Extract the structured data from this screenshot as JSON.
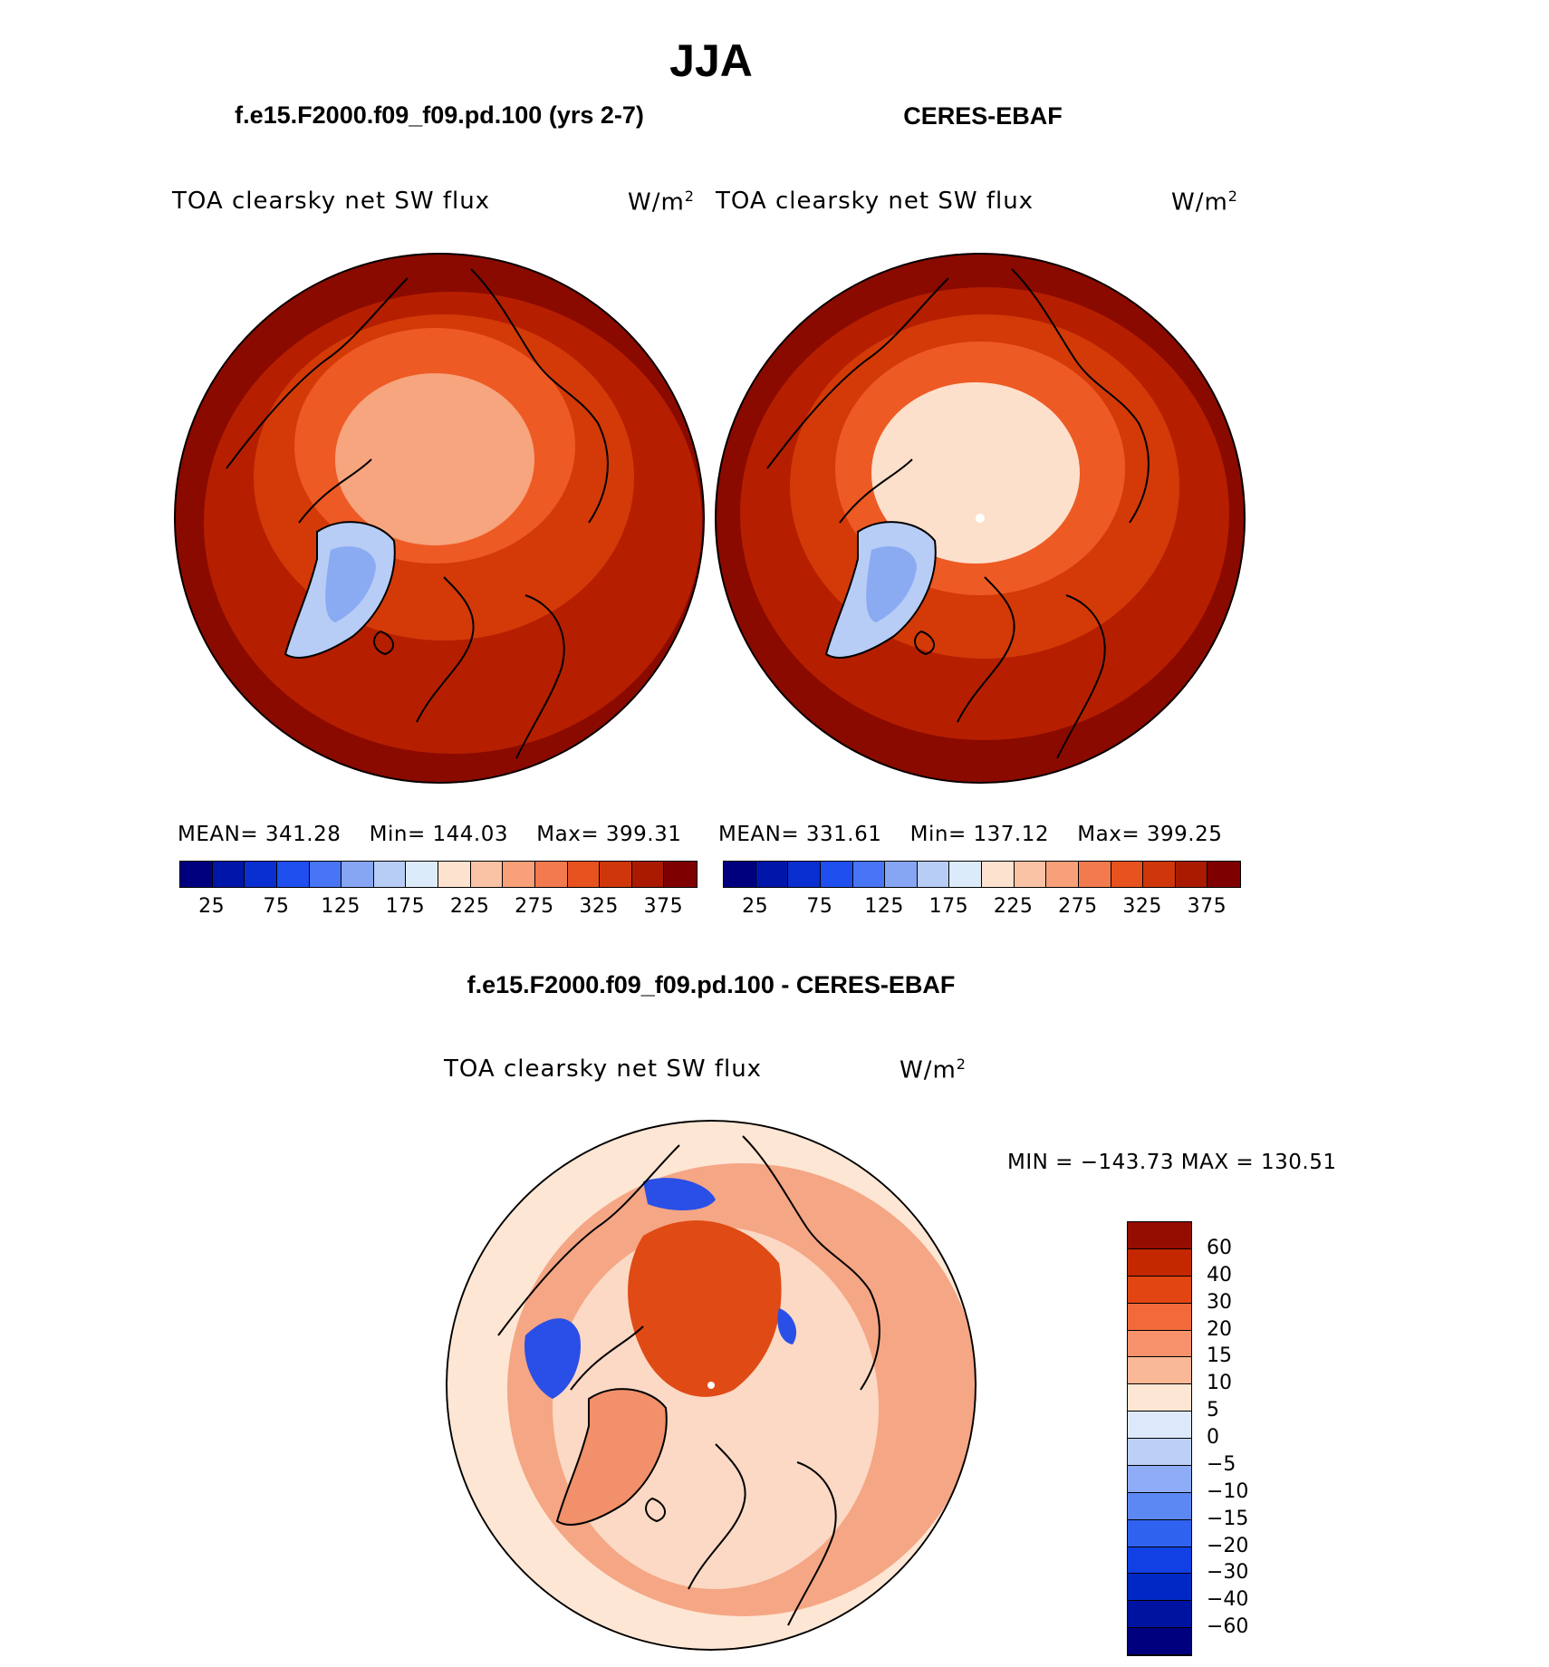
{
  "figure_title": "JJA",
  "panels": [
    {
      "case_title": "f.e15.F2000.f09_f09.pd.100 (yrs 2-7)",
      "field": "TOA clearsky net SW flux",
      "units": "W/m",
      "units_exp": "2",
      "stats": {
        "mean": "MEAN= 341.28",
        "min": "Min= 144.03",
        "max": "Max= 399.31"
      },
      "map_colors": {
        "outer": "#8b0a00",
        "ring1": "#b51f00",
        "ring2": "#d33a08",
        "ring3": "#ee5a24",
        "inner": "#f6a57e",
        "greenland": "#b7cdf6",
        "greenland_core": "#8aaaf2"
      }
    },
    {
      "case_title": "CERES-EBAF",
      "field": "TOA clearsky net SW flux",
      "units": "W/m",
      "units_exp": "2",
      "stats": {
        "mean": "MEAN= 331.61",
        "min": "Min= 137.12",
        "max": "Max= 399.25"
      },
      "map_colors": {
        "outer": "#8b0a00",
        "ring1": "#b51f00",
        "ring2": "#d33a08",
        "ring3": "#ee5a24",
        "inner": "#fde0cc",
        "greenland": "#b7cdf6",
        "greenland_core": "#8aaaf2"
      }
    }
  ],
  "abs_colorbar": {
    "colors": [
      "#00007f",
      "#0016a8",
      "#0a2fd0",
      "#1f4fee",
      "#4775f5",
      "#86a6f4",
      "#b7cdf6",
      "#dcebf9",
      "#fde2cf",
      "#fbc3a5",
      "#f7a07a",
      "#f27a4e",
      "#e8521f",
      "#cf370a",
      "#aa1a00",
      "#7f0000"
    ],
    "tick_labels": [
      "25",
      "75",
      "125",
      "175",
      "225",
      "275",
      "325",
      "375"
    ]
  },
  "diff_panel": {
    "case_title": "f.e15.F2000.f09_f09.pd.100 - CERES-EBAF",
    "field": "TOA clearsky net SW flux",
    "units": "W/m",
    "units_exp": "2",
    "minmax": "MIN = −143.73 MAX = 130.51",
    "map_colors": {
      "background": "#fde6d4",
      "warm": "#f1906a",
      "strong": "#e04a14",
      "cool": "#2a4fe6"
    }
  },
  "diff_colorbar": {
    "colors": [
      "#00007f",
      "#0013a0",
      "#0028c4",
      "#1140e4",
      "#3062f0",
      "#5c88f4",
      "#8fadf6",
      "#bcd0f7",
      "#dde9fa",
      "#fde6d4",
      "#f9b896",
      "#f7926c",
      "#f26a3a",
      "#e24412",
      "#c42800",
      "#950c00"
    ],
    "tick_labels": [
      "60",
      "40",
      "30",
      "20",
      "15",
      "10",
      "5",
      "0",
      "−5",
      "−10",
      "−15",
      "−20",
      "−30",
      "−40",
      "−60"
    ]
  }
}
